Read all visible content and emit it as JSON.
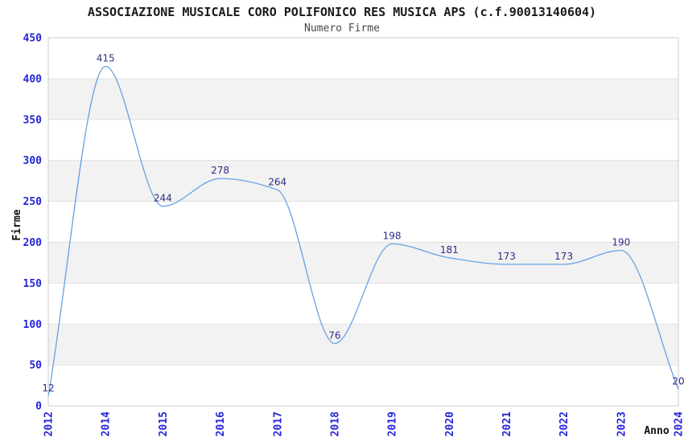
{
  "header": {
    "title": "ASSOCIAZIONE MUSICALE CORO POLIFONICO RES MUSICA APS (c.f.90013140604)",
    "subtitle": "Numero Firme"
  },
  "chart_data": {
    "type": "line",
    "title": "ASSOCIAZIONE MUSICALE CORO POLIFONICO RES MUSICA APS (c.f.90013140604)",
    "subtitle": "Numero Firme",
    "categories": [
      "2012",
      "2014",
      "2015",
      "2016",
      "2017",
      "2018",
      "2019",
      "2020",
      "2021",
      "2022",
      "2023",
      "2024"
    ],
    "values": [
      12,
      415,
      244,
      278,
      264,
      76,
      198,
      181,
      173,
      173,
      190,
      20
    ],
    "xlabel": "Anno",
    "ylabel": "Firme",
    "ylim": [
      0,
      450
    ],
    "ytick_step": 50,
    "yticks": [
      0,
      50,
      100,
      150,
      200,
      250,
      300,
      350,
      400,
      450
    ],
    "grid": "horizontal-alternating-bands",
    "legend": "none",
    "curve": "monotone",
    "colors": {
      "line": "#66a1e6",
      "tick_label": "#2525d8",
      "data_label": "#2e2e85",
      "band": "#f2f2f2",
      "gridline": "#e2e2e2",
      "plot_border": "#cccccc",
      "axis_title": "#111111",
      "background": "#ffffff"
    }
  }
}
